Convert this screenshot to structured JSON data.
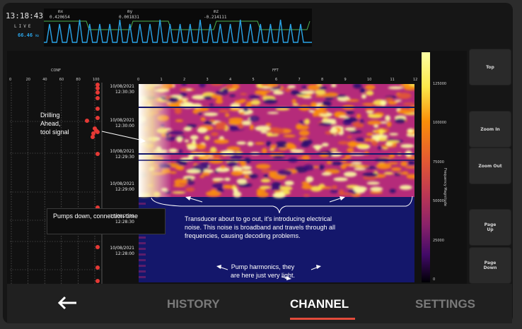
{
  "header": {
    "clock": "13:18:43",
    "live_label": "LIVE",
    "rate_value": "66.46",
    "rate_unit": "Hz",
    "channels": [
      {
        "name": "mx",
        "value": "0.420654"
      },
      {
        "name": "my",
        "value": "0.001831"
      },
      {
        "name": "mz",
        "value": "-0.214111"
      }
    ],
    "wave_color": "#2aa4e8",
    "pulse_line_color": "#4caf50"
  },
  "conf_panel": {
    "title": "CONF",
    "ticks": [
      "0",
      "20",
      "40",
      "60",
      "80",
      "100"
    ],
    "point_color": "#e53935"
  },
  "timestamps": [
    {
      "date": "10/08/2021",
      "time": "12:30:30"
    },
    {
      "date": "10/08/2021",
      "time": "12:30:00"
    },
    {
      "date": "10/08/2021",
      "time": "12:29:30"
    },
    {
      "date": "10/08/2021",
      "time": "12:29:00"
    },
    {
      "date": "10/08/2021",
      "time": "12:28:30"
    },
    {
      "date": "10/08/2021",
      "time": "12:28:00"
    }
  ],
  "fft": {
    "title": "FFT",
    "ticks": [
      "0",
      "1",
      "2",
      "3",
      "4",
      "5",
      "6",
      "7",
      "8",
      "9",
      "10",
      "11",
      "12"
    ]
  },
  "colorbar": {
    "label": "Frequency Magnitude",
    "ticks": [
      "125000",
      "100000",
      "75000",
      "50000",
      "25000",
      "0"
    ]
  },
  "annotations": {
    "drilling": "Drilling Ahead, tool signal",
    "drilling_lines": [
      "Drilling",
      "Ahead,",
      "tool signal"
    ],
    "pumps_down": "Pumps down, connection time",
    "transducer_lines": [
      "Transducer about to go out, it's introducing electrical",
      "noise. This noise is broadband and travels through all",
      "frequencies, causing decoding problems."
    ],
    "pump_harmonics_lines": [
      "Pump harmonics, they",
      "are here just very light."
    ]
  },
  "right_buttons": {
    "top": "Top",
    "zoom_in": "Zoom In",
    "zoom_out": "Zoom Out",
    "page_up_1": "Page",
    "page_up_2": "Up",
    "page_down_1": "Page",
    "page_down_2": "Down"
  },
  "nav": {
    "back_icon": "arrow-left-icon",
    "history": "HISTORY",
    "channel": "CHANNEL",
    "settings": "SETTINGS",
    "active_color": "#e24b3b"
  }
}
